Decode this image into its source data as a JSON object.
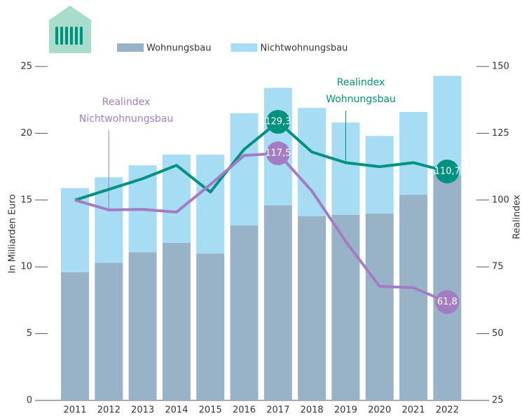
{
  "chart_data": {
    "type": "bar-line",
    "categories": [
      "2011",
      "2012",
      "2013",
      "2014",
      "2015",
      "2016",
      "2017",
      "2018",
      "2019",
      "2020",
      "2021",
      "2022"
    ],
    "series": [
      {
        "name": "Wohnungsbau",
        "color": "#98b3c8",
        "values": [
          9.6,
          10.3,
          11.1,
          11.8,
          11.0,
          13.1,
          14.6,
          13.8,
          13.9,
          14.0,
          15.4,
          16.9
        ]
      },
      {
        "name": "Nichtwohnungsbau",
        "color": "#a6dcf4",
        "values": [
          6.3,
          6.4,
          6.5,
          6.6,
          7.4,
          8.4,
          8.8,
          8.1,
          6.9,
          5.8,
          6.2,
          7.4
        ]
      },
      {
        "name": "Realindex Wohnungsbau",
        "color": "#00917f",
        "axis": "y2",
        "values": [
          100,
          104,
          108,
          113,
          103,
          119,
          129.3,
          118,
          114,
          112.5,
          114,
          110.7
        ],
        "value_labels": [
          null,
          null,
          null,
          null,
          null,
          null,
          "129,3",
          null,
          null,
          null,
          null,
          "110,7"
        ]
      },
      {
        "name": "Realindex Nichtwohnungsbau",
        "color": "#a47cc4",
        "axis": "y2",
        "values": [
          100,
          96.3,
          96.5,
          95.5,
          105.8,
          116.7,
          117.5,
          103.4,
          84.5,
          67.7,
          67.2,
          61.8
        ],
        "value_labels": [
          null,
          null,
          null,
          null,
          null,
          null,
          "117,5",
          null,
          null,
          null,
          null,
          "61,8"
        ]
      }
    ],
    "legend_series": [
      0,
      1
    ],
    "annotations": [
      {
        "lines": [
          "Realindex",
          "Wohnungsbau"
        ],
        "series": 2,
        "index": 8
      },
      {
        "lines": [
          "Realindex",
          "Nichtwohnungsbau"
        ],
        "series": 3,
        "index": 1
      }
    ],
    "ylabel": "In Milliarden Euro",
    "y2label": "Realindex",
    "ylim": [
      0,
      25
    ],
    "yticks": [
      0,
      5,
      10,
      15,
      20,
      25
    ],
    "y2lim": [
      25,
      150
    ],
    "y2ticks": [
      25,
      50,
      75,
      100,
      125,
      150
    ]
  }
}
